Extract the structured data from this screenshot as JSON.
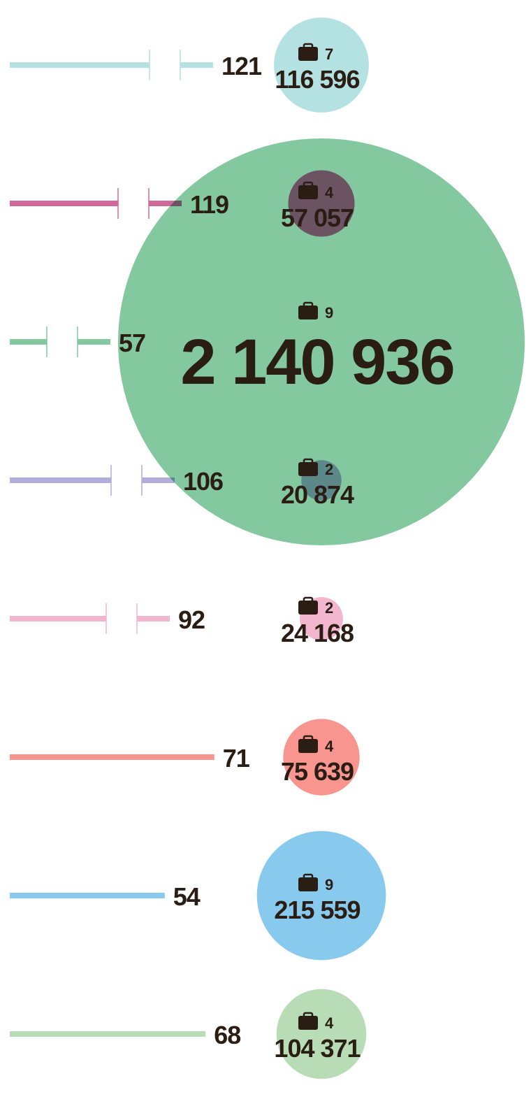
{
  "chart_data": {
    "type": "bar+bubble",
    "grid": false,
    "text_color": "#2a1d14",
    "icon": "briefcase-icon",
    "rows": [
      {
        "bar_value": 121,
        "axis_break": true,
        "count": 7,
        "total": "116 596",
        "total_value": 116596,
        "color": "#b4e1e1"
      },
      {
        "bar_value": 119,
        "axis_break": true,
        "count": 4,
        "total": "57 057",
        "total_value": 57057,
        "color": "#d0699b"
      },
      {
        "bar_value": 57,
        "axis_break": true,
        "count": 9,
        "total": "2 140 936",
        "total_value": 2140936,
        "color": "#84c8a0"
      },
      {
        "bar_value": 106,
        "axis_break": true,
        "count": 2,
        "total": "20 874",
        "total_value": 20874,
        "color": "#b1aedb"
      },
      {
        "bar_value": 92,
        "axis_break": true,
        "count": 2,
        "total": "24 168",
        "total_value": 24168,
        "color": "#f2b6cf"
      },
      {
        "bar_value": 71,
        "axis_break": false,
        "count": 4,
        "total": "75 639",
        "total_value": 75639,
        "color": "#f8958f"
      },
      {
        "bar_value": 54,
        "axis_break": false,
        "count": 9,
        "total": "215 559",
        "total_value": 215559,
        "color": "#88caee"
      },
      {
        "bar_value": 68,
        "axis_break": false,
        "count": 4,
        "total": "104 371",
        "total_value": 104371,
        "color": "#b8dcb5"
      }
    ]
  }
}
